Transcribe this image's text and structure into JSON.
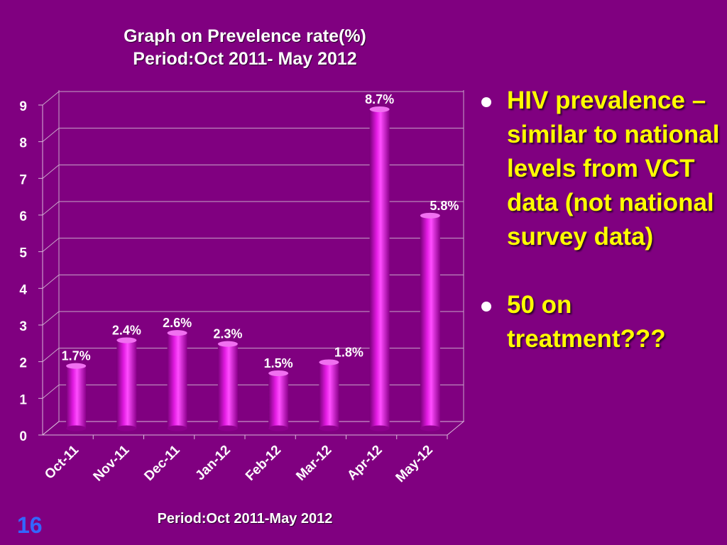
{
  "chart_data": {
    "type": "bar",
    "title": "Graph on Prevelence rate(%)",
    "subtitle": "Period:Oct 2011- May 2012",
    "xlabel": "Period:Oct 2011-May 2012",
    "ylabel": "",
    "categories": [
      "Oct-11",
      "Nov-11",
      "Dec-11",
      "Jan-12",
      "Feb-12",
      "Mar-12",
      "Apr-12",
      "May-12"
    ],
    "values": [
      1.7,
      2.4,
      2.6,
      2.3,
      1.5,
      1.8,
      8.7,
      5.8
    ],
    "data_labels": [
      "1.7%",
      "2.4%",
      "2.6%",
      "2.3%",
      "1.5%",
      "1.8%",
      "8.7%",
      "5.8%"
    ],
    "ylim": [
      0,
      9
    ],
    "yticks": [
      "0",
      "1",
      "2",
      "3",
      "4",
      "5",
      "6",
      "7",
      "8",
      "9"
    ],
    "grid": true,
    "legend": "none",
    "bar_color": "#cc00cc"
  },
  "bullets": [
    "HIV prevalence – similar to national levels from VCT data (not national survey data)",
    "50  on treatment???"
  ],
  "page_number": "16",
  "colors": {
    "background": "#800080",
    "bullet_text": "#ffff00",
    "page_number": "#3366ff"
  }
}
